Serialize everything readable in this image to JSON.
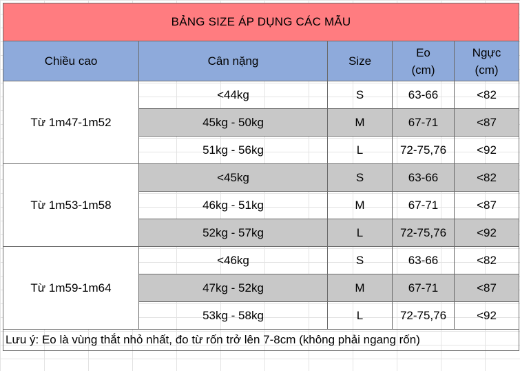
{
  "title": "BẢNG SIZE ÁP DỤNG CÁC MẪU",
  "headers": {
    "height": "Chiều cao",
    "weight": "Cân nặng",
    "size": "Size",
    "waist_line1": "Eo",
    "waist_line2": "(cm)",
    "chest_line1": "Ngực",
    "chest_line2": "(cm)"
  },
  "groups": [
    {
      "height": "Từ 1m47-1m52",
      "rows": [
        {
          "weight": "<44kg",
          "size": "S",
          "waist": "63-66",
          "chest": "<82"
        },
        {
          "weight": "45kg - 50kg",
          "size": "M",
          "waist": "67-71",
          "chest": "<87"
        },
        {
          "weight": "51kg - 56kg",
          "size": "L",
          "waist": "72-75,76",
          "chest": "<92"
        }
      ]
    },
    {
      "height": "Từ 1m53-1m58",
      "rows": [
        {
          "weight": "<45kg",
          "size": "S",
          "waist": "63-66",
          "chest": "<82"
        },
        {
          "weight": "46kg - 51kg",
          "size": "M",
          "waist": "67-71",
          "chest": "<87"
        },
        {
          "weight": "52kg - 57kg",
          "size": "L",
          "waist": "72-75,76",
          "chest": "<92"
        }
      ]
    },
    {
      "height": "Từ 1m59-1m64",
      "rows": [
        {
          "weight": "<46kg",
          "size": "S",
          "waist": "63-66",
          "chest": "<82"
        },
        {
          "weight": "47kg - 52kg",
          "size": "M",
          "waist": "67-71",
          "chest": "<87"
        },
        {
          "weight": "53kg - 58kg",
          "size": "L",
          "waist": "72-75,76",
          "chest": "<92"
        }
      ]
    }
  ],
  "note": "Lưu ý: Eo là vùng thắt nhỏ nhất, đo từ rốn trở lên 7-8cm (không phải ngang rốn)",
  "colors": {
    "title_bg": "#ff7c80",
    "header_bg": "#8eaadb",
    "shaded_row_bg": "#c8c8c8",
    "group_separator": "#c0504d"
  }
}
